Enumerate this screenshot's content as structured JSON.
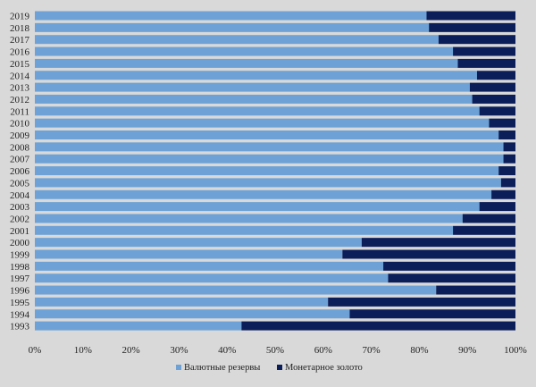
{
  "chart_data": {
    "type": "bar",
    "orientation": "horizontal",
    "stacked": "percent",
    "categories": [
      "2019",
      "2018",
      "2017",
      "2016",
      "2015",
      "2014",
      "2013",
      "2012",
      "2011",
      "2010",
      "2009",
      "2008",
      "2007",
      "2006",
      "2005",
      "2004",
      "2003",
      "2002",
      "2001",
      "2000",
      "1999",
      "1998",
      "1997",
      "1996",
      "1995",
      "1994",
      "1993"
    ],
    "series": [
      {
        "name": "Валютные резервы",
        "color": "#6ea2d6",
        "values": [
          81.5,
          82,
          84,
          87,
          88,
          92,
          90.5,
          91,
          92.5,
          94.5,
          96.5,
          97.5,
          97.5,
          96.5,
          97,
          95,
          92.5,
          89,
          87,
          68,
          64,
          72.5,
          73.5,
          83.5,
          61,
          65.5,
          43
        ]
      },
      {
        "name": "Монетарное золото",
        "color": "#0c1e5a",
        "values": [
          18.5,
          18,
          16,
          13,
          12,
          8,
          9.5,
          9,
          7.5,
          5.5,
          3.5,
          2.5,
          2.5,
          3.5,
          3,
          5,
          7.5,
          11,
          13,
          32,
          36,
          27.5,
          26.5,
          16.5,
          39,
          34.5,
          57
        ]
      }
    ],
    "x_ticks": [
      "0%",
      "10%",
      "20%",
      "30%",
      "40%",
      "50%",
      "60%",
      "70%",
      "80%",
      "90%",
      "100%"
    ],
    "xlim": [
      0,
      100
    ],
    "grid": false,
    "legend_position": "bottom-center"
  }
}
